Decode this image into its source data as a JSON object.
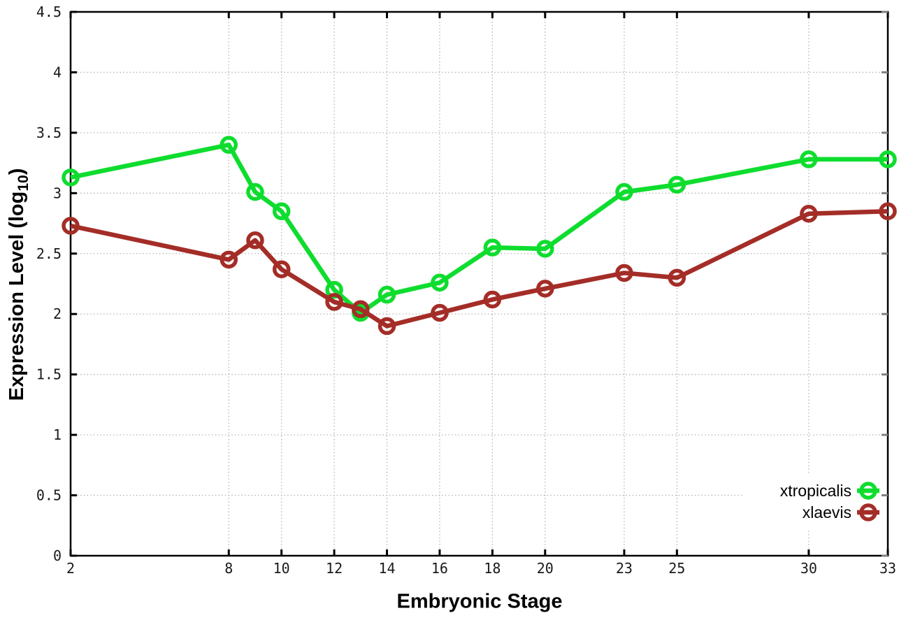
{
  "chart_data": {
    "type": "line",
    "title": "",
    "xlabel": "Embryonic Stage",
    "ylabel": "Expression Level (log10)",
    "ylabel_parts": {
      "prefix": "Expression Level (log",
      "sub": "10",
      "suffix": ")"
    },
    "xlim": [
      2,
      33
    ],
    "ylim": [
      0,
      4.5
    ],
    "grid": true,
    "legend_position": "bottom-right",
    "x_tick_values": [
      2,
      8,
      10,
      12,
      14,
      16,
      18,
      20,
      23,
      25,
      30,
      33
    ],
    "x_tick_labels": [
      "2",
      "8",
      "10",
      "12",
      "14",
      "16",
      "18",
      "20",
      "23",
      "25",
      "30",
      "33"
    ],
    "y_tick_values": [
      0,
      0.5,
      1,
      1.5,
      2,
      2.5,
      3,
      3.5,
      4,
      4.5
    ],
    "y_tick_labels": [
      "0",
      "0.5",
      "1",
      "1.5",
      "2",
      "2.5",
      "3",
      "3.5",
      "4",
      "4.5"
    ],
    "x": [
      2,
      8,
      9,
      10,
      12,
      13,
      14,
      16,
      18,
      20,
      23,
      25,
      30,
      33
    ],
    "series": [
      {
        "name": "xtropicalis",
        "color": "#0edd2e",
        "marker": "open-circle",
        "values": [
          3.13,
          3.4,
          3.01,
          2.85,
          2.2,
          2.01,
          2.16,
          2.26,
          2.55,
          2.54,
          3.01,
          3.07,
          3.28,
          3.28
        ]
      },
      {
        "name": "xlaevis",
        "color": "#a42d27",
        "marker": "open-circle",
        "values": [
          2.73,
          2.45,
          2.61,
          2.37,
          2.1,
          2.04,
          1.9,
          2.01,
          2.12,
          2.21,
          2.34,
          2.3,
          2.83,
          2.85
        ]
      }
    ],
    "colors": {
      "border": "#000000",
      "grid": "#b3b3b3",
      "tick": "#000000",
      "mirror_tick": "#808080",
      "background": "#ffffff"
    }
  }
}
